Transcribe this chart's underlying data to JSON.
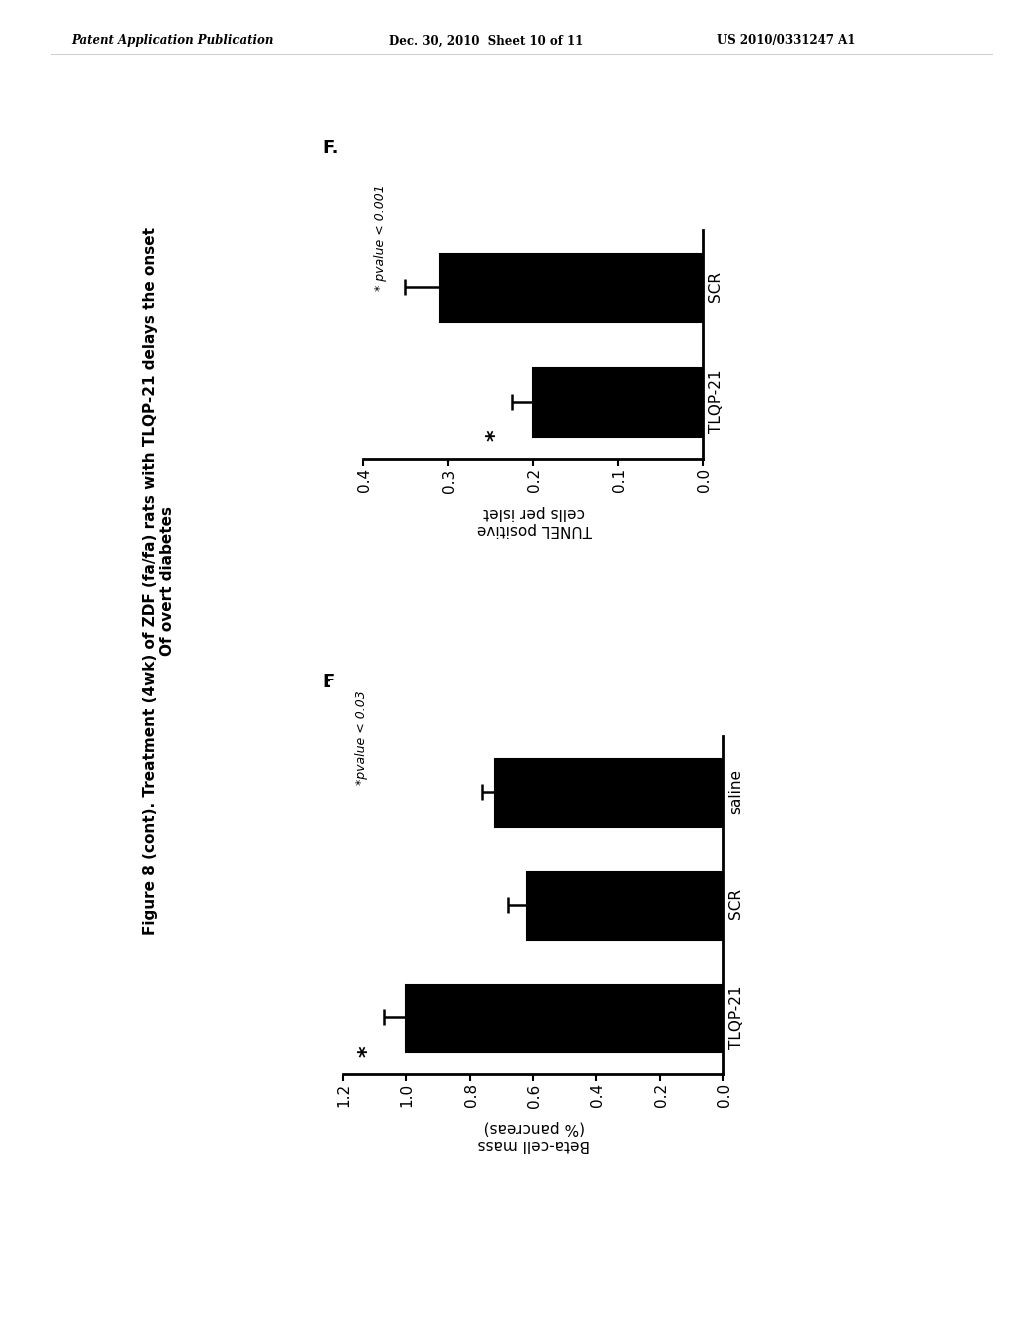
{
  "header_left": "Patent Application Publication",
  "header_center": "Dec. 30, 2010  Sheet 10 of 11",
  "header_right": "US 2010/0331247 A1",
  "panel_E_label": "E.",
  "panel_F_label": "F.",
  "figure_title": "Figure 8 (cont). Treatment (4wk) of ZDF (fa/fa) rats with TLQP-21 delays the onset\nOf overt diabetes",
  "panel_E": {
    "categories": [
      "TLQP-21",
      "SCR",
      "saline"
    ],
    "values": [
      1.0,
      0.62,
      0.72
    ],
    "errors": [
      0.07,
      0.06,
      0.04
    ],
    "ylabel_line1": "Beta-cell mass",
    "ylabel_line2": "(% pancreas)",
    "ylim": [
      0,
      1.2
    ],
    "yticks": [
      0.0,
      0.2,
      0.4,
      0.6,
      0.8,
      1.0,
      1.2
    ],
    "star_bar": "TLQP-21",
    "pvalue_text": "*pvalue < 0.03",
    "bar_color": "#000000"
  },
  "panel_F": {
    "categories": [
      "TLQP-21",
      "SCR"
    ],
    "values": [
      0.2,
      0.31
    ],
    "errors": [
      0.025,
      0.04
    ],
    "ylabel_line1": "TUNEL positive",
    "ylabel_line2": "cells per islet",
    "ylim": [
      0,
      0.4
    ],
    "yticks": [
      0.0,
      0.1,
      0.2,
      0.3,
      0.4
    ],
    "star_bar": "TLQP-21",
    "pvalue_text": "* pvalue < 0.001",
    "bar_color": "#000000"
  },
  "background_color": "#ffffff",
  "text_color": "#000000"
}
